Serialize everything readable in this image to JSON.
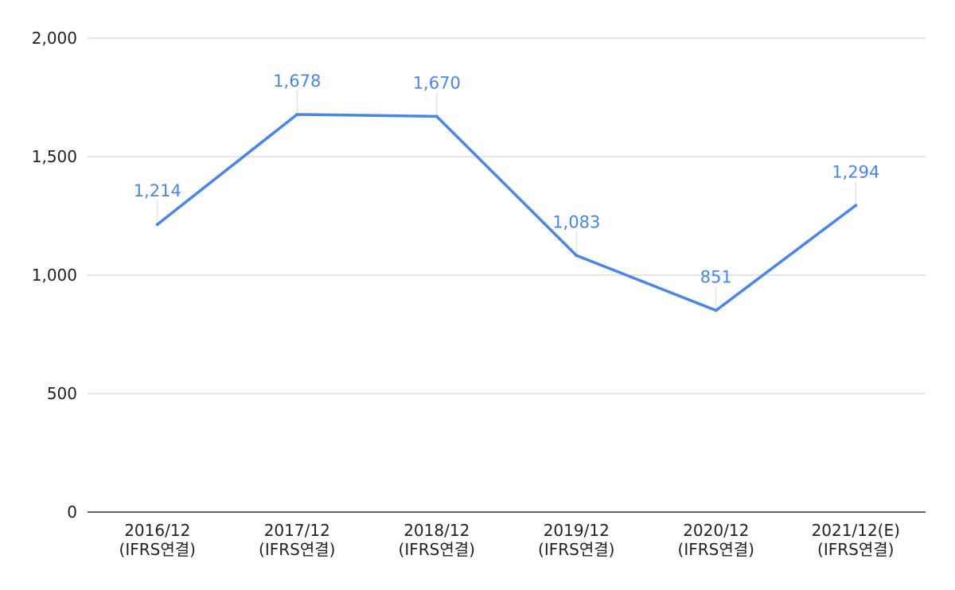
{
  "chart_data": {
    "type": "line",
    "categories": [
      [
        "2016/12",
        "(IFRS연결)"
      ],
      [
        "2017/12",
        "(IFRS연결)"
      ],
      [
        "2018/12",
        "(IFRS연결)"
      ],
      [
        "2019/12",
        "(IFRS연결)"
      ],
      [
        "2020/12",
        "(IFRS연결)"
      ],
      [
        "2021/12(E)",
        "(IFRS연결)"
      ]
    ],
    "series": [
      {
        "values": [
          1214,
          1678,
          1670,
          1083,
          851,
          1294
        ],
        "data_labels": [
          "1,214",
          "1,678",
          "1,670",
          "1,083",
          "851",
          "1,294"
        ],
        "color": "#4a86e8"
      }
    ],
    "yticks": [
      0,
      500,
      1000,
      1500,
      2000
    ],
    "ytick_labels": [
      "0",
      "500",
      "1,000",
      "1,500",
      "2,000"
    ],
    "ylim": [
      0,
      2000
    ],
    "grid": true,
    "legend": "none",
    "gridline_color": "#cccccc",
    "axis_color": "#333333"
  }
}
